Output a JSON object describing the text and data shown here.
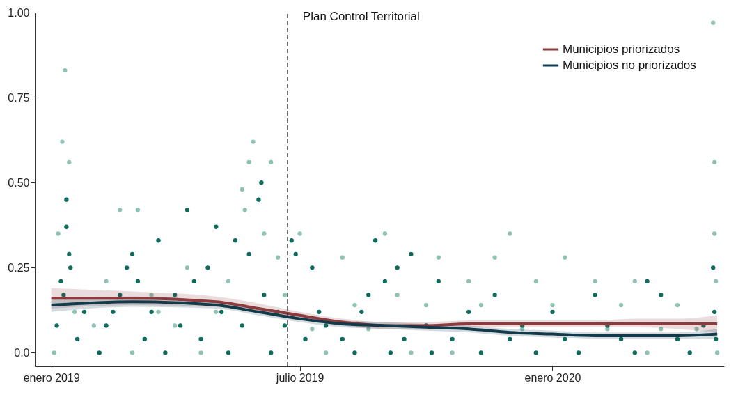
{
  "chart_data": {
    "type": "scatter",
    "title": null,
    "xlim": [
      "2018-12-20",
      "2020-05-05"
    ],
    "xticks": [
      {
        "value": "2019-01-01",
        "label": "enero 2019"
      },
      {
        "value": "2019-07-01",
        "label": "julio 2019"
      },
      {
        "value": "2020-01-01",
        "label": "enero 2020"
      }
    ],
    "ylim": [
      -0.04,
      1.0
    ],
    "yticks": [
      {
        "value": 0,
        "label": "0.0"
      },
      0.25,
      {
        "value": 0.5,
        "label": "0.50"
      },
      0.75,
      {
        "value": 1,
        "label": "1.00"
      }
    ],
    "grid": false,
    "legend": "top right",
    "ref_lines": [
      {
        "axis": "x",
        "value": "2019-06-22",
        "label": "Plan Control Territorial",
        "line_style": "dashed",
        "color": "#222222"
      }
    ],
    "series": [
      {
        "marker": "circle",
        "color": "#8fc1b5",
        "x": [
          "2019-01-03",
          "2019-01-06",
          "2019-01-09",
          "2019-01-11",
          "2019-01-14",
          "2019-01-18",
          "2019-02-01",
          "2019-02-10",
          "2019-02-20",
          "2019-03-01",
          "2019-03-05",
          "2019-03-15",
          "2019-03-20",
          "2019-04-01",
          "2019-04-10",
          "2019-04-20",
          "2019-05-01",
          "2019-05-10",
          "2019-05-20",
          "2019-05-22",
          "2019-05-25",
          "2019-05-28",
          "2019-06-05",
          "2019-06-10",
          "2019-06-15",
          "2019-06-20",
          "2019-07-01",
          "2019-07-10",
          "2019-07-20",
          "2019-08-01",
          "2019-08-10",
          "2019-08-20",
          "2019-09-01",
          "2019-09-10",
          "2019-09-20",
          "2019-10-01",
          "2019-10-10",
          "2019-10-20",
          "2019-11-01",
          "2019-11-10",
          "2019-11-20",
          "2019-12-01",
          "2019-12-10",
          "2019-12-20",
          "2020-01-01",
          "2020-01-10",
          "2020-01-20",
          "2020-02-01",
          "2020-02-10",
          "2020-02-20",
          "2020-03-01",
          "2020-03-10",
          "2020-03-20",
          "2020-04-01",
          "2020-04-15",
          "2020-04-27",
          "2020-04-28",
          "2020-04-28",
          "2020-04-29",
          "2020-04-30"
        ],
        "values": [
          0.0,
          0.35,
          0.62,
          0.83,
          0.56,
          0.12,
          0.08,
          0.21,
          0.42,
          0.0,
          0.42,
          0.17,
          0.12,
          0.08,
          0.25,
          0.0,
          0.12,
          0.21,
          0.48,
          0.42,
          0.56,
          0.62,
          0.35,
          0.56,
          0.28,
          0.17,
          0.35,
          0.07,
          0.0,
          0.28,
          0.14,
          0.07,
          0.35,
          0.17,
          0.0,
          0.14,
          0.28,
          0.0,
          0.21,
          0.14,
          0.28,
          0.35,
          0.07,
          0.21,
          0.14,
          0.28,
          0.0,
          0.21,
          0.07,
          0.14,
          0.21,
          0.0,
          0.07,
          0.14,
          0.07,
          0.97,
          0.56,
          0.35,
          0.21,
          0.0
        ]
      },
      {
        "marker": "circle",
        "color": "#0e6b5e",
        "x": [
          "2019-01-05",
          "2019-01-08",
          "2019-01-10",
          "2019-01-12",
          "2019-01-12",
          "2019-01-14",
          "2019-01-15",
          "2019-01-20",
          "2019-01-25",
          "2019-02-05",
          "2019-02-10",
          "2019-02-15",
          "2019-02-20",
          "2019-02-25",
          "2019-03-01",
          "2019-03-05",
          "2019-03-10",
          "2019-03-15",
          "2019-03-20",
          "2019-03-25",
          "2019-04-01",
          "2019-04-05",
          "2019-04-10",
          "2019-04-15",
          "2019-04-20",
          "2019-04-25",
          "2019-05-01",
          "2019-05-05",
          "2019-05-10",
          "2019-05-15",
          "2019-05-20",
          "2019-05-25",
          "2019-06-01",
          "2019-06-03",
          "2019-06-05",
          "2019-06-10",
          "2019-06-15",
          "2019-06-20",
          "2019-06-25",
          "2019-06-28",
          "2019-07-05",
          "2019-07-10",
          "2019-07-15",
          "2019-07-20",
          "2019-08-01",
          "2019-08-10",
          "2019-08-15",
          "2019-08-20",
          "2019-08-25",
          "2019-09-01",
          "2019-09-05",
          "2019-09-10",
          "2019-09-15",
          "2019-09-20",
          "2019-10-01",
          "2019-10-05",
          "2019-10-10",
          "2019-10-20",
          "2019-11-01",
          "2019-11-10",
          "2019-11-20",
          "2019-12-01",
          "2019-12-10",
          "2019-12-20",
          "2020-01-01",
          "2020-01-10",
          "2020-01-20",
          "2020-02-01",
          "2020-02-10",
          "2020-02-20",
          "2020-03-01",
          "2020-03-10",
          "2020-03-20",
          "2020-04-01",
          "2020-04-10",
          "2020-04-20",
          "2020-04-27",
          "2020-04-28",
          "2020-04-29"
        ],
        "values": [
          0.08,
          0.21,
          0.17,
          0.45,
          0.37,
          0.29,
          0.25,
          0.04,
          0.12,
          0.0,
          0.08,
          0.12,
          0.17,
          0.25,
          0.29,
          0.21,
          0.04,
          0.12,
          0.33,
          0.0,
          0.17,
          0.08,
          0.42,
          0.21,
          0.04,
          0.25,
          0.37,
          0.12,
          0.0,
          0.33,
          0.08,
          0.29,
          0.45,
          0.5,
          0.17,
          0.0,
          0.12,
          0.08,
          0.33,
          0.29,
          0.04,
          0.25,
          0.12,
          0.08,
          0.04,
          0.0,
          0.12,
          0.17,
          0.33,
          0.21,
          0.0,
          0.25,
          0.04,
          0.29,
          0.08,
          0.0,
          0.21,
          0.04,
          0.12,
          0.0,
          0.17,
          0.04,
          0.08,
          0.0,
          0.12,
          0.04,
          0.0,
          0.17,
          0.08,
          0.04,
          0.0,
          0.21,
          0.17,
          0.04,
          0.0,
          0.08,
          0.25,
          0.12,
          0.04
        ]
      },
      {
        "type": "line",
        "name": "Municipios priorizados",
        "color": "#8b3a3e",
        "x": [
          "2019-01-01",
          "2019-03-01",
          "2019-05-01",
          "2019-06-01",
          "2019-07-01",
          "2019-08-01",
          "2019-09-01",
          "2019-10-01",
          "2019-11-01",
          "2019-12-01",
          "2020-01-01",
          "2020-02-01",
          "2020-03-01",
          "2020-04-01",
          "2020-04-30"
        ],
        "values": [
          0.16,
          0.16,
          0.15,
          0.13,
          0.11,
          0.09,
          0.08,
          0.08,
          0.085,
          0.085,
          0.085,
          0.085,
          0.085,
          0.085,
          0.085
        ],
        "lower": [
          0.13,
          0.14,
          0.135,
          0.12,
          0.1,
          0.08,
          0.07,
          0.07,
          0.075,
          0.075,
          0.075,
          0.075,
          0.075,
          0.07,
          0.06
        ],
        "upper": [
          0.19,
          0.18,
          0.165,
          0.145,
          0.12,
          0.1,
          0.09,
          0.09,
          0.095,
          0.095,
          0.095,
          0.095,
          0.1,
          0.1,
          0.11
        ]
      },
      {
        "type": "line",
        "name": "Municipios no priorizados",
        "color": "#123a4a",
        "x": [
          "2019-01-01",
          "2019-03-01",
          "2019-05-01",
          "2019-06-01",
          "2019-07-01",
          "2019-08-01",
          "2019-09-01",
          "2019-10-01",
          "2019-11-01",
          "2019-12-01",
          "2020-01-01",
          "2020-02-01",
          "2020-03-01",
          "2020-04-01",
          "2020-04-30"
        ],
        "values": [
          0.14,
          0.15,
          0.14,
          0.12,
          0.1,
          0.085,
          0.08,
          0.075,
          0.07,
          0.06,
          0.055,
          0.05,
          0.05,
          0.05,
          0.055
        ],
        "lower": [
          0.12,
          0.135,
          0.13,
          0.11,
          0.09,
          0.075,
          0.07,
          0.065,
          0.06,
          0.05,
          0.045,
          0.04,
          0.04,
          0.04,
          0.04
        ],
        "upper": [
          0.16,
          0.165,
          0.15,
          0.13,
          0.11,
          0.095,
          0.09,
          0.085,
          0.08,
          0.07,
          0.065,
          0.06,
          0.06,
          0.06,
          0.07
        ]
      }
    ]
  }
}
